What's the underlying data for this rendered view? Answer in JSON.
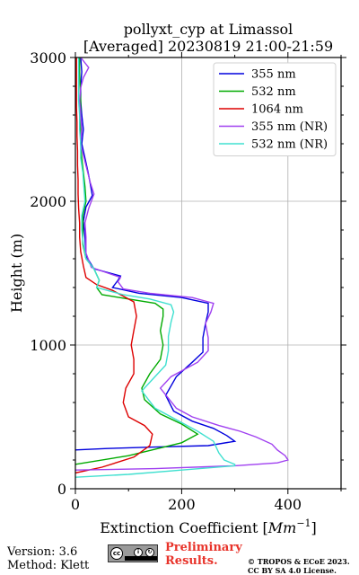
{
  "chart_data": {
    "type": "line",
    "title": "pollyxt_cyp at Limassol",
    "subtitle": "[Averaged] 20230819 21:00-21:59",
    "xlabel": "Extinction Coefficient [",
    "xlabel_unit": "Mm",
    "xlabel_exp": "−1",
    "xlabel_close": "]",
    "ylabel": "Height (m)",
    "xlim": [
      0,
      500
    ],
    "ylim": [
      0,
      3000
    ],
    "xticks": [
      0,
      200,
      400
    ],
    "yticks": [
      0,
      1000,
      2000,
      3000
    ],
    "grid": true,
    "legend_position": "top-right",
    "series": [
      {
        "name": "355 nm",
        "color": "#0000dd",
        "points": [
          [
            0,
            270
          ],
          [
            60,
            280
          ],
          [
            150,
            290
          ],
          [
            250,
            300
          ],
          [
            300,
            330
          ],
          [
            285,
            370
          ],
          [
            260,
            420
          ],
          [
            220,
            470
          ],
          [
            185,
            540
          ],
          [
            170,
            650
          ],
          [
            190,
            780
          ],
          [
            220,
            880
          ],
          [
            240,
            950
          ],
          [
            240,
            1050
          ],
          [
            245,
            1150
          ],
          [
            250,
            1230
          ],
          [
            250,
            1290
          ],
          [
            200,
            1330
          ],
          [
            120,
            1360
          ],
          [
            70,
            1400
          ],
          [
            80,
            1450
          ],
          [
            85,
            1480
          ],
          [
            35,
            1530
          ],
          [
            20,
            1620
          ],
          [
            18,
            1750
          ],
          [
            15,
            1860
          ],
          [
            20,
            1960
          ],
          [
            32,
            2040
          ],
          [
            28,
            2120
          ],
          [
            24,
            2200
          ],
          [
            18,
            2300
          ],
          [
            12,
            2400
          ],
          [
            15,
            2500
          ],
          [
            12,
            2600
          ],
          [
            10,
            2700
          ],
          [
            10,
            2800
          ],
          [
            12,
            2900
          ],
          [
            10,
            3000
          ]
        ]
      },
      {
        "name": "532 nm",
        "color": "#00aa00",
        "points": [
          [
            0,
            170
          ],
          [
            100,
            230
          ],
          [
            200,
            320
          ],
          [
            230,
            380
          ],
          [
            200,
            450
          ],
          [
            160,
            520
          ],
          [
            130,
            620
          ],
          [
            125,
            700
          ],
          [
            140,
            800
          ],
          [
            160,
            900
          ],
          [
            165,
            1000
          ],
          [
            160,
            1100
          ],
          [
            165,
            1200
          ],
          [
            165,
            1250
          ],
          [
            150,
            1290
          ],
          [
            100,
            1320
          ],
          [
            50,
            1350
          ],
          [
            40,
            1400
          ],
          [
            45,
            1450
          ],
          [
            35,
            1530
          ],
          [
            20,
            1600
          ],
          [
            14,
            1700
          ],
          [
            14,
            1800
          ],
          [
            14,
            1900
          ],
          [
            20,
            2000
          ],
          [
            18,
            2100
          ],
          [
            15,
            2200
          ],
          [
            12,
            2300
          ],
          [
            10,
            2400
          ],
          [
            10,
            2500
          ],
          [
            10,
            2600
          ],
          [
            10,
            2700
          ],
          [
            9,
            2800
          ],
          [
            8,
            2900
          ],
          [
            8,
            3000
          ]
        ]
      },
      {
        "name": "1064 nm",
        "color": "#dd0000",
        "points": [
          [
            0,
            110
          ],
          [
            50,
            150
          ],
          [
            110,
            220
          ],
          [
            140,
            300
          ],
          [
            145,
            380
          ],
          [
            130,
            440
          ],
          [
            100,
            500
          ],
          [
            90,
            600
          ],
          [
            95,
            700
          ],
          [
            110,
            800
          ],
          [
            110,
            900
          ],
          [
            105,
            1000
          ],
          [
            110,
            1100
          ],
          [
            115,
            1200
          ],
          [
            110,
            1300
          ],
          [
            70,
            1380
          ],
          [
            40,
            1420
          ],
          [
            20,
            1470
          ],
          [
            15,
            1550
          ],
          [
            10,
            1650
          ],
          [
            8,
            1750
          ],
          [
            8,
            1850
          ],
          [
            6,
            1950
          ],
          [
            5,
            2050
          ],
          [
            5,
            2150
          ],
          [
            4,
            2250
          ],
          [
            4,
            2350
          ],
          [
            3,
            2450
          ],
          [
            3,
            2550
          ],
          [
            2,
            2650
          ],
          [
            2,
            2750
          ],
          [
            2,
            2850
          ],
          [
            2,
            2950
          ],
          [
            2,
            3000
          ]
        ]
      },
      {
        "name": "355 nm (NR)",
        "color": "#a040f0",
        "points": [
          [
            0,
            130
          ],
          [
            150,
            140
          ],
          [
            300,
            160
          ],
          [
            380,
            180
          ],
          [
            400,
            200
          ],
          [
            395,
            230
          ],
          [
            380,
            270
          ],
          [
            370,
            310
          ],
          [
            340,
            360
          ],
          [
            310,
            400
          ],
          [
            270,
            440
          ],
          [
            220,
            500
          ],
          [
            190,
            560
          ],
          [
            160,
            700
          ],
          [
            180,
            780
          ],
          [
            230,
            880
          ],
          [
            250,
            960
          ],
          [
            250,
            1050
          ],
          [
            245,
            1150
          ],
          [
            255,
            1230
          ],
          [
            260,
            1290
          ],
          [
            220,
            1330
          ],
          [
            140,
            1360
          ],
          [
            90,
            1390
          ],
          [
            80,
            1440
          ],
          [
            85,
            1470
          ],
          [
            30,
            1540
          ],
          [
            20,
            1640
          ],
          [
            20,
            1750
          ],
          [
            18,
            1850
          ],
          [
            25,
            1950
          ],
          [
            35,
            2050
          ],
          [
            28,
            2130
          ],
          [
            22,
            2220
          ],
          [
            15,
            2320
          ],
          [
            10,
            2400
          ],
          [
            12,
            2500
          ],
          [
            10,
            2600
          ],
          [
            8,
            2700
          ],
          [
            10,
            2790
          ],
          [
            15,
            2860
          ],
          [
            25,
            2930
          ],
          [
            10,
            3000
          ]
        ]
      },
      {
        "name": "532 nm (NR)",
        "color": "#40e0d0",
        "points": [
          [
            0,
            80
          ],
          [
            100,
            100
          ],
          [
            200,
            130
          ],
          [
            300,
            160
          ],
          [
            300,
            170
          ],
          [
            280,
            200
          ],
          [
            270,
            250
          ],
          [
            260,
            330
          ],
          [
            230,
            400
          ],
          [
            195,
            470
          ],
          [
            150,
            560
          ],
          [
            125,
            680
          ],
          [
            145,
            760
          ],
          [
            170,
            860
          ],
          [
            175,
            960
          ],
          [
            175,
            1060
          ],
          [
            180,
            1160
          ],
          [
            185,
            1230
          ],
          [
            180,
            1280
          ],
          [
            140,
            1320
          ],
          [
            90,
            1350
          ],
          [
            40,
            1400
          ],
          [
            45,
            1450
          ],
          [
            35,
            1530
          ],
          [
            20,
            1600
          ],
          [
            15,
            1700
          ],
          [
            12,
            1800
          ],
          [
            12,
            1900
          ],
          [
            18,
            2000
          ],
          [
            16,
            2100
          ],
          [
            14,
            2200
          ],
          [
            10,
            2300
          ],
          [
            10,
            2400
          ],
          [
            8,
            2500
          ],
          [
            8,
            2600
          ],
          [
            6,
            2700
          ],
          [
            6,
            2800
          ],
          [
            6,
            2900
          ],
          [
            6,
            3000
          ]
        ]
      }
    ]
  },
  "footer": {
    "version": "Version: 3.6",
    "method": "Method: Klett",
    "preliminary_line1": "Preliminary",
    "preliminary_line2": "Results.",
    "copyright_line1": "© TROPOS & ECoE 2023.",
    "copyright_line2": "CC BY SA 4.0 License.",
    "cc_label": "cc",
    "cc_by": "i",
    "cc_sa": "↻"
  }
}
